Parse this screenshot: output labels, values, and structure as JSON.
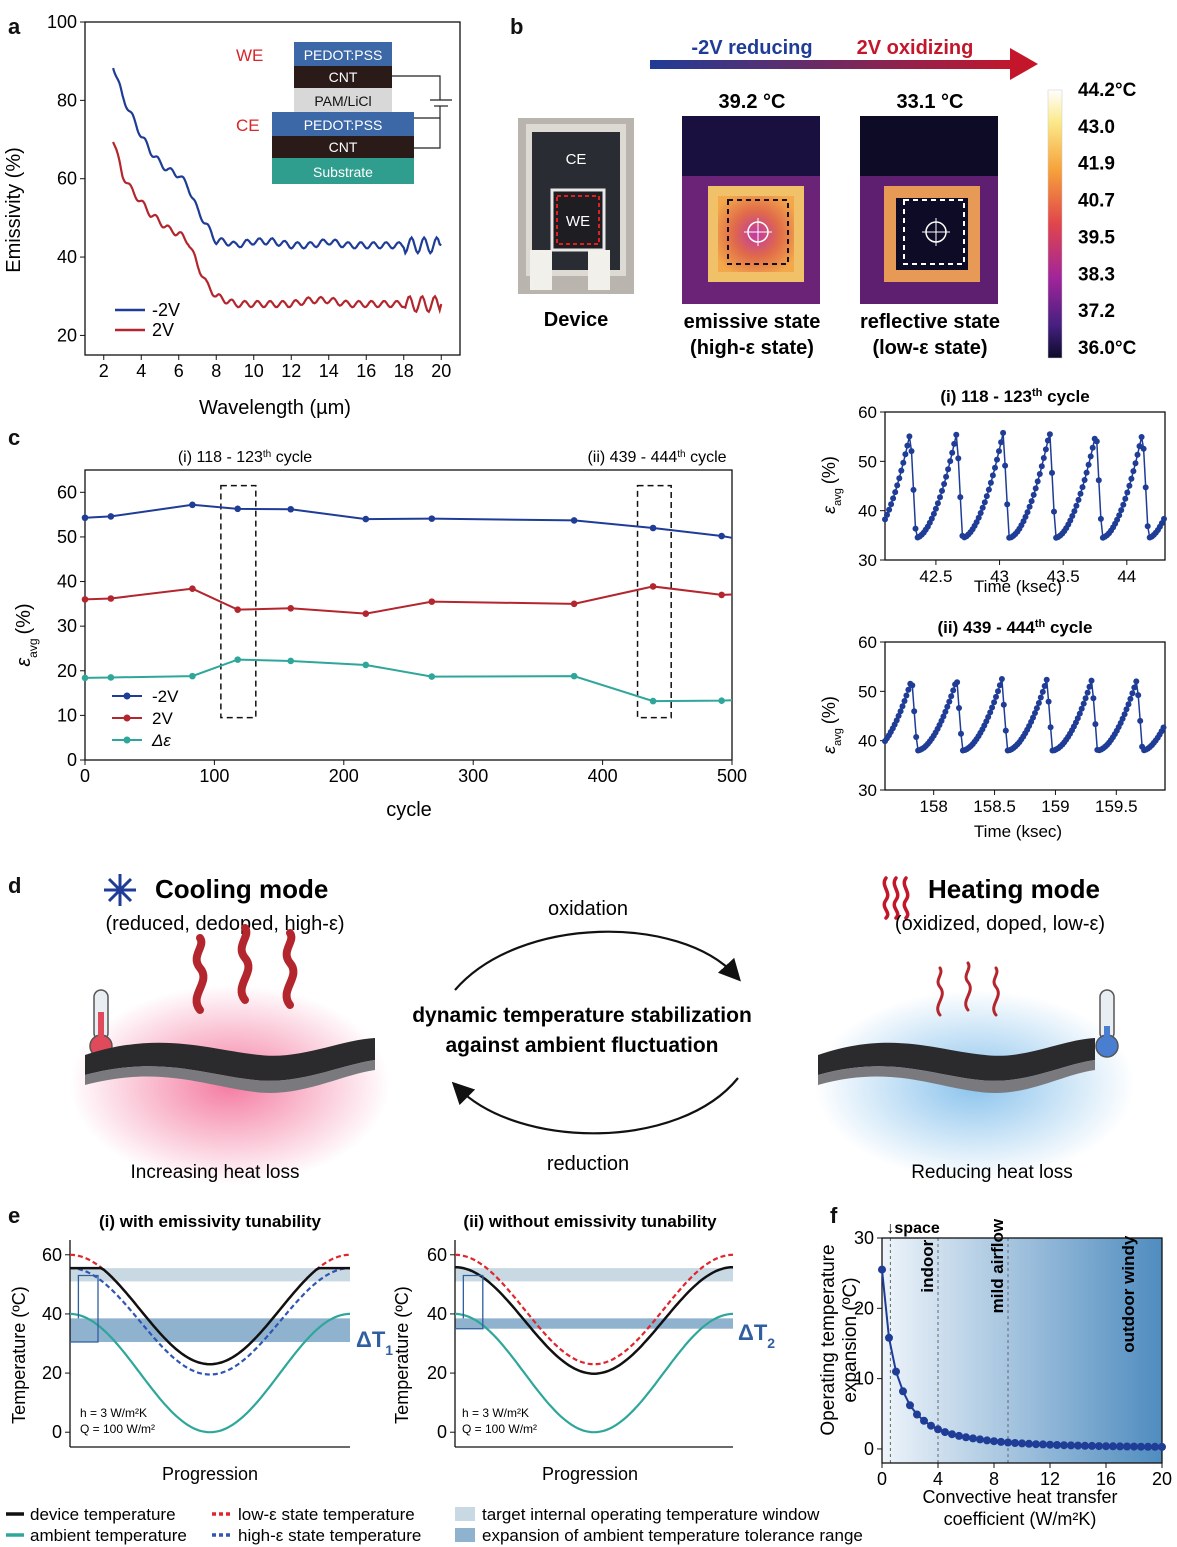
{
  "panels": {
    "a": "a",
    "b": "b",
    "c": "c",
    "d": "d",
    "e": "e",
    "f": "f"
  },
  "colors": {
    "neg2v": "#1f3c96",
    "pos2v": "#b3262d",
    "delta": "#2ea79a",
    "black": "#111111",
    "low_eps": "#e0262d",
    "high_eps": "#2f55b5",
    "target_band": "#c8d9e4",
    "expansion_band": "#8fb3cf"
  },
  "chart_data": [
    {
      "id": "a",
      "type": "line",
      "xlabel": "Wavelength (µm)",
      "ylabel": "Emissivity (%)",
      "xlim": [
        1,
        21
      ],
      "ylim": [
        15,
        100
      ],
      "xticks": [
        2,
        4,
        6,
        8,
        10,
        12,
        14,
        16,
        18,
        20
      ],
      "yticks": [
        20,
        40,
        60,
        80,
        100
      ],
      "series": [
        {
          "name": "-2V",
          "color": "#1f3c96",
          "x": [
            2.5,
            3,
            3.5,
            4,
            4.5,
            5,
            5.5,
            6,
            6.5,
            7,
            7.5,
            8,
            8.5,
            9,
            10,
            11,
            12,
            13,
            14,
            15,
            16,
            17,
            18,
            19,
            20
          ],
          "y": [
            89,
            81,
            76,
            71,
            67,
            64,
            62,
            61,
            58,
            52,
            48,
            44,
            44,
            43,
            44,
            44,
            43,
            43,
            44,
            43,
            43,
            43,
            43,
            43,
            43
          ]
        },
        {
          "name": "2V",
          "color": "#b3262d",
          "x": [
            2.5,
            3,
            3.5,
            4,
            4.5,
            5,
            5.5,
            6,
            6.5,
            7,
            7.5,
            8,
            8.5,
            9,
            10,
            11,
            12,
            13,
            14,
            15,
            16,
            17,
            18,
            19,
            20
          ],
          "y": [
            70,
            61,
            57,
            54,
            51,
            49,
            47,
            46,
            44,
            38,
            33,
            30,
            29,
            28,
            28,
            28,
            28,
            29,
            29,
            28,
            28,
            28,
            28,
            28,
            28
          ]
        }
      ],
      "inset_layers": {
        "we_label": "WE",
        "ce_label": "CE",
        "layers": [
          "PEDOT:PSS",
          "CNT",
          "PAM/LiCl",
          "PEDOT:PSS",
          "CNT",
          "Substrate"
        ]
      }
    },
    {
      "id": "b",
      "type": "other",
      "arrow_left": "-2V reducing",
      "arrow_right": "2V oxidizing",
      "device_label": "Device",
      "ce": "CE",
      "we": "WE",
      "emissive_temp": "39.2 °C",
      "reflective_temp": "33.1 °C",
      "emissive_caption": [
        "emissive state",
        "(high-ε state)"
      ],
      "reflective_caption": [
        "reflective state",
        "(low-ε state)"
      ],
      "colorbar": [
        "44.2°C",
        "43.0",
        "41.9",
        "40.7",
        "39.5",
        "38.3",
        "37.2",
        "36.0°C"
      ]
    },
    {
      "id": "c",
      "type": "line",
      "xlabel": "cycle",
      "ylabel_main": "ε",
      "ylabel_sub": "avg",
      "ylabel_unit": "(%)",
      "xlim": [
        0,
        500
      ],
      "ylim": [
        0,
        65
      ],
      "xticks": [
        0,
        100,
        200,
        300,
        400,
        500
      ],
      "yticks": [
        0,
        10,
        20,
        30,
        40,
        50,
        60
      ],
      "annot_i_pre": "(i) 118 - 123",
      "annot_ii_pre": "(ii) 439 - 444",
      "annot_sup": "th",
      "annot_post": " cycle",
      "series": [
        {
          "name": "-2V",
          "color": "#1f3c96",
          "x": [
            0,
            20,
            83,
            118,
            159,
            217,
            268,
            378,
            439,
            492
          ],
          "y": [
            54.3,
            54.6,
            57.2,
            56.3,
            56.2,
            54.0,
            54.1,
            53.7,
            52.0,
            50.2
          ]
        },
        {
          "name": "2V",
          "color": "#b3262d",
          "x": [
            0,
            20,
            83,
            118,
            159,
            217,
            268,
            378,
            439,
            492
          ],
          "y": [
            36.0,
            36.2,
            38.4,
            33.7,
            34.0,
            32.8,
            35.5,
            35.0,
            38.9,
            37.0
          ]
        },
        {
          "name": "Δε",
          "color": "#2ea79a",
          "x": [
            0,
            20,
            83,
            118,
            159,
            217,
            268,
            378,
            439,
            492
          ],
          "y": [
            18.4,
            18.5,
            18.8,
            22.5,
            22.2,
            21.3,
            18.7,
            18.8,
            13.2,
            13.3
          ]
        }
      ]
    },
    {
      "id": "c-i",
      "type": "line",
      "title_pre": "(i) 118 - 123",
      "title_sup": "th",
      "title_post": " cycle",
      "xlabel": "Time (ksec)",
      "xlim": [
        42.1,
        44.3
      ],
      "ylim": [
        30,
        60
      ],
      "xticks": [
        42.5,
        43,
        43.5,
        44
      ],
      "xtick_labels": [
        "42.5",
        "43",
        "43.5",
        "44"
      ],
      "yticks": [
        30,
        40,
        50,
        60
      ],
      "period": 0.365,
      "phase": 42.3,
      "min": 34.5,
      "max": 56
    },
    {
      "id": "c-ii",
      "type": "line",
      "title_pre": "(ii) 439 - 444",
      "title_sup": "th",
      "title_post": " cycle",
      "xlabel": "Time (ksec)",
      "xlim": [
        157.6,
        159.9
      ],
      "ylim": [
        30,
        60
      ],
      "xticks": [
        158,
        158.5,
        159,
        159.5
      ],
      "xtick_labels": [
        "158",
        "158.5",
        "159",
        "159.5"
      ],
      "yticks": [
        30,
        40,
        50,
        60
      ],
      "period": 0.37,
      "phase": 157.82,
      "min": 38,
      "max": 52.5
    },
    {
      "id": "e-i",
      "type": "line",
      "title": "(i) with emissivity tunability",
      "xlabel": "Progression",
      "ylabel": "Temperature (ºC)",
      "ylim": [
        -5,
        65
      ],
      "yticks": [
        0,
        20,
        40,
        60
      ],
      "note_h": "h = 3 W/m²K",
      "note_q": "Q = 100 W/m²",
      "delta_main": "ΔT",
      "delta_sub": "1",
      "target_band": [
        51,
        55.5
      ],
      "expansion_band": [
        30.5,
        38.5
      ]
    },
    {
      "id": "e-ii",
      "type": "line",
      "title": "(ii) without emissivity tunability",
      "xlabel": "Progression",
      "ylabel": "Temperature (ºC)",
      "ylim": [
        -5,
        65
      ],
      "yticks": [
        0,
        20,
        40,
        60
      ],
      "note_h": "h = 3 W/m²K",
      "note_q": "Q = 100 W/m²",
      "delta_main": "ΔT",
      "delta_sub": "2",
      "target_band": [
        51,
        55.5
      ],
      "expansion_band": [
        35,
        38.5
      ]
    },
    {
      "id": "f",
      "type": "scatter",
      "xlabel": [
        "Convective heat transfer",
        "coefficient (W/m²K)"
      ],
      "ylabel": [
        "Operating temperature",
        "expansion (ºC)"
      ],
      "xlim": [
        0,
        20
      ],
      "ylim": [
        -2,
        30
      ],
      "xticks": [
        0,
        4,
        8,
        12,
        16,
        20
      ],
      "yticks": [
        0,
        10,
        20,
        30
      ],
      "regions": [
        {
          "label": "space",
          "x": 0.6
        },
        {
          "label": "indoor",
          "x": 4
        },
        {
          "label": "mild airflow",
          "x": 9
        },
        {
          "label": "outdoor windy",
          "x": 18
        }
      ],
      "x": [
        0,
        0.5,
        1,
        1.5,
        2,
        2.5,
        3,
        3.5,
        4,
        4.5,
        5,
        5.5,
        6,
        6.5,
        7,
        7.5,
        8,
        8.5,
        9,
        9.5,
        10,
        10.5,
        11,
        11.5,
        12,
        12.5,
        13,
        13.5,
        14,
        14.5,
        15,
        15.5,
        16,
        16.5,
        17,
        17.5,
        18,
        18.5,
        19,
        19.5,
        20
      ],
      "y": [
        25.5,
        15.8,
        11.0,
        8.2,
        6.2,
        4.9,
        4.0,
        3.3,
        2.8,
        2.4,
        2.1,
        1.85,
        1.65,
        1.5,
        1.35,
        1.22,
        1.1,
        1.0,
        0.92,
        0.85,
        0.79,
        0.73,
        0.68,
        0.64,
        0.6,
        0.56,
        0.53,
        0.5,
        0.47,
        0.45,
        0.43,
        0.41,
        0.39,
        0.37,
        0.36,
        0.34,
        0.33,
        0.32,
        0.31,
        0.3,
        0.29
      ]
    }
  ],
  "panel_d": {
    "cooling_title": "Cooling mode",
    "cooling_sub": "(reduced, dedoped, high-ε)",
    "heating_title": "Heating mode",
    "heating_sub": "(oxidized, doped, low-ε)",
    "oxidation": "oxidation",
    "reduction": "reduction",
    "center_line1": "dynamic temperature stabilization",
    "center_line2": "against ambient fluctuation",
    "left_caption": "Increasing heat loss",
    "right_caption": "Reducing heat loss"
  },
  "legend_bottom": [
    {
      "label": "device temperature",
      "color": "#111111",
      "dash": false
    },
    {
      "label": "low-ε state temperature",
      "color": "#e0262d",
      "dash": true
    },
    {
      "label": "target internal operating temperature window",
      "color": "#c8d9e4",
      "band": true
    },
    {
      "label": "ambient temperature",
      "color": "#2ea79a",
      "dash": false
    },
    {
      "label": "high-ε state temperature",
      "color": "#2f55b5",
      "dash": true
    },
    {
      "label": "expansion of ambient temperature tolerance range",
      "color": "#8fb3cf",
      "band": true
    }
  ]
}
